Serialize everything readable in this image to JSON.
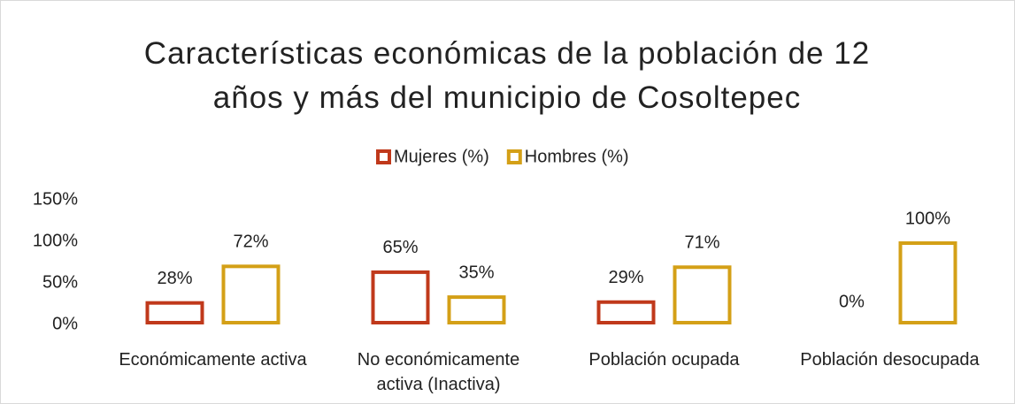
{
  "chart_data": {
    "type": "bar",
    "title": "Características económicas de la población de 12 años y más del municipio de Cosoltepec",
    "categories": [
      "Económicamente activa",
      "No económicamente activa (Inactiva)",
      "Población ocupada",
      "Población desocupada"
    ],
    "series": [
      {
        "name": "Mujeres (%)",
        "color": "#c0391b",
        "values": [
          28,
          65,
          29,
          0
        ],
        "value_labels": [
          "28%",
          "65%",
          "29%",
          "0%"
        ]
      },
      {
        "name": "Hombres (%)",
        "color": "#d4a017",
        "values": [
          72,
          35,
          71,
          100
        ],
        "value_labels": [
          "72%",
          "35%",
          "71%",
          "100%"
        ]
      }
    ],
    "ylim": [
      0,
      150
    ],
    "yticks": [
      {
        "value": 0,
        "label": "0%"
      },
      {
        "value": 50,
        "label": "50%"
      },
      {
        "value": 100,
        "label": "100%"
      },
      {
        "value": 150,
        "label": "150%"
      }
    ],
    "legend": "top",
    "grid": false
  }
}
